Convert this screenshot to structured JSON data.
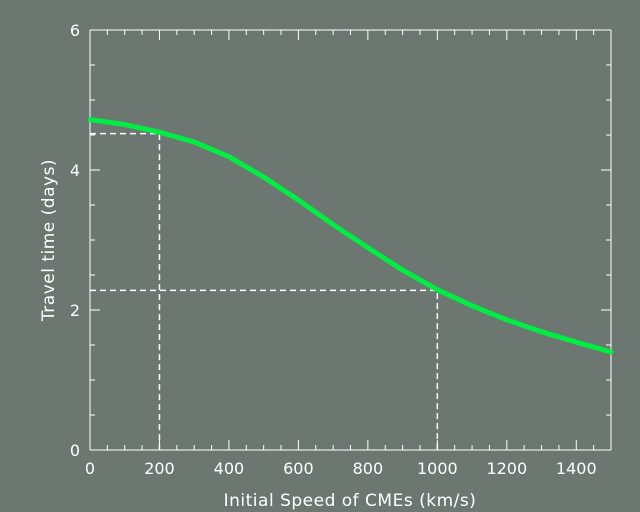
{
  "chart_data": {
    "type": "line",
    "xlabel": "Initial Speed of CMEs (km/s)",
    "ylabel": "Travel time (days)",
    "xlim": [
      0,
      1500
    ],
    "ylim": [
      0,
      6
    ],
    "xticks": [
      0,
      200,
      400,
      600,
      800,
      1000,
      1200,
      1400
    ],
    "yticks": [
      0,
      2,
      4,
      6
    ],
    "grid": false,
    "series": [
      {
        "color": "#00ee44",
        "x": [
          0,
          100,
          200,
          300,
          400,
          500,
          600,
          700,
          800,
          900,
          1000,
          1100,
          1200,
          1300,
          1400,
          1500
        ],
        "y": [
          4.72,
          4.65,
          4.54,
          4.4,
          4.19,
          3.9,
          3.57,
          3.22,
          2.89,
          2.57,
          2.29,
          2.06,
          1.86,
          1.69,
          1.54,
          1.4
        ]
      }
    ],
    "reference_lines": [
      {
        "x": 200,
        "y": 4.52
      },
      {
        "x": 1000,
        "y": 2.28
      }
    ],
    "colors": {
      "background": "#6b7770",
      "axes": "#ffffff",
      "guides": "#ffffff"
    }
  }
}
